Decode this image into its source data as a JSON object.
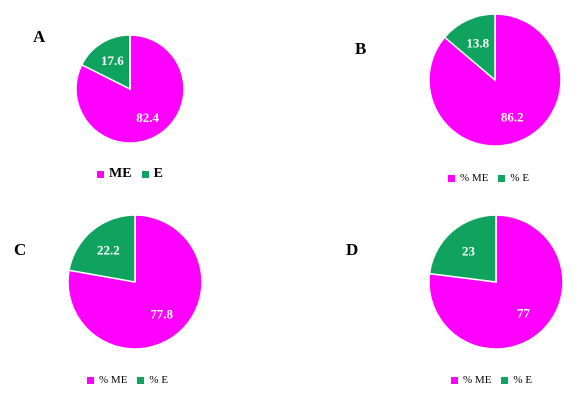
{
  "colors": {
    "ME": "#ff00ff",
    "E": "#10a35f"
  },
  "chart_data": [
    {
      "type": "pie",
      "panel": "A",
      "categories": [
        "ME",
        "E"
      ],
      "values": [
        82.4,
        17.6
      ],
      "value_labels": [
        "82.4",
        "17.6"
      ],
      "legend": [
        "ME",
        "E"
      ],
      "legend_placement": "bottom"
    },
    {
      "type": "pie",
      "panel": "B",
      "categories": [
        "% ME",
        "% E"
      ],
      "values": [
        86.2,
        13.8
      ],
      "value_labels": [
        "86.2",
        "13.8"
      ],
      "legend": [
        "% ME",
        "% E"
      ],
      "legend_placement": "bottom"
    },
    {
      "type": "pie",
      "panel": "C",
      "categories": [
        "% ME",
        "% E"
      ],
      "values": [
        77.8,
        22.2
      ],
      "value_labels": [
        "77.8",
        "22.2"
      ],
      "legend": [
        "% ME",
        "% E"
      ],
      "legend_placement": "bottom"
    },
    {
      "type": "pie",
      "panel": "D",
      "categories": [
        "% ME",
        "% E"
      ],
      "values": [
        77,
        23
      ],
      "value_labels": [
        "77",
        "23"
      ],
      "legend": [
        "% ME",
        "% E"
      ],
      "legend_placement": "bottom"
    }
  ]
}
